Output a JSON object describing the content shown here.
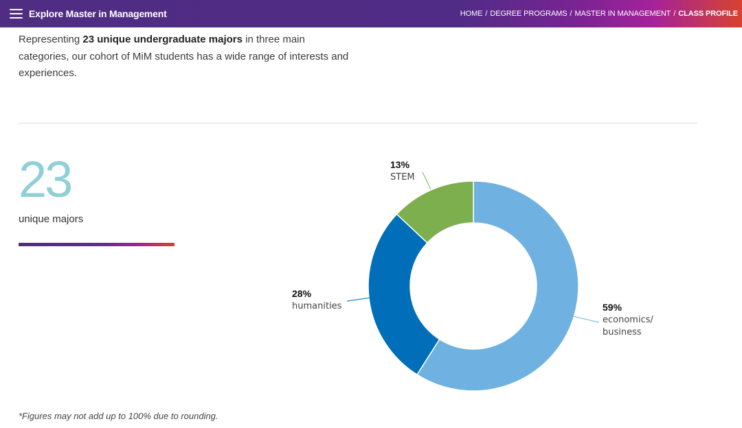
{
  "topbar": {
    "menu_title": "Explore Master in Management",
    "breadcrumb": [
      {
        "label": "HOME"
      },
      {
        "label": "DEGREE PROGRAMS"
      },
      {
        "label": "MASTER IN MANAGEMENT"
      },
      {
        "label": "CLASS PROFILE"
      }
    ],
    "separator": "/"
  },
  "intro": {
    "text_before": "Representing ",
    "bold": "23 unique undergraduate majors",
    "text_after": " in three main categories, our cohort of MiM students has a wide range of interests and experiences."
  },
  "stat": {
    "number": "23",
    "label": "unique majors"
  },
  "footnote": "*Figures may not add up to 100% due to rounding.",
  "colors": {
    "economics": "#6fb1e0",
    "humanities": "#006eb9",
    "stem": "#7daf4f",
    "big_number": "#8fcfd6"
  },
  "chart_data": {
    "type": "pie",
    "variant": "donut",
    "start_angle_deg": 0,
    "direction": "clockwise",
    "slices": [
      {
        "key": "economics",
        "pct_label": "59%",
        "value": 59,
        "name_lines": [
          "economics/",
          "business"
        ],
        "color": "#6fb1e0"
      },
      {
        "key": "humanities",
        "pct_label": "28%",
        "value": 28,
        "name_lines": [
          "humanities"
        ],
        "color": "#006eb9"
      },
      {
        "key": "stem",
        "pct_label": "13%",
        "value": 13,
        "name_lines": [
          "STEM"
        ],
        "color": "#7daf4f"
      }
    ]
  }
}
